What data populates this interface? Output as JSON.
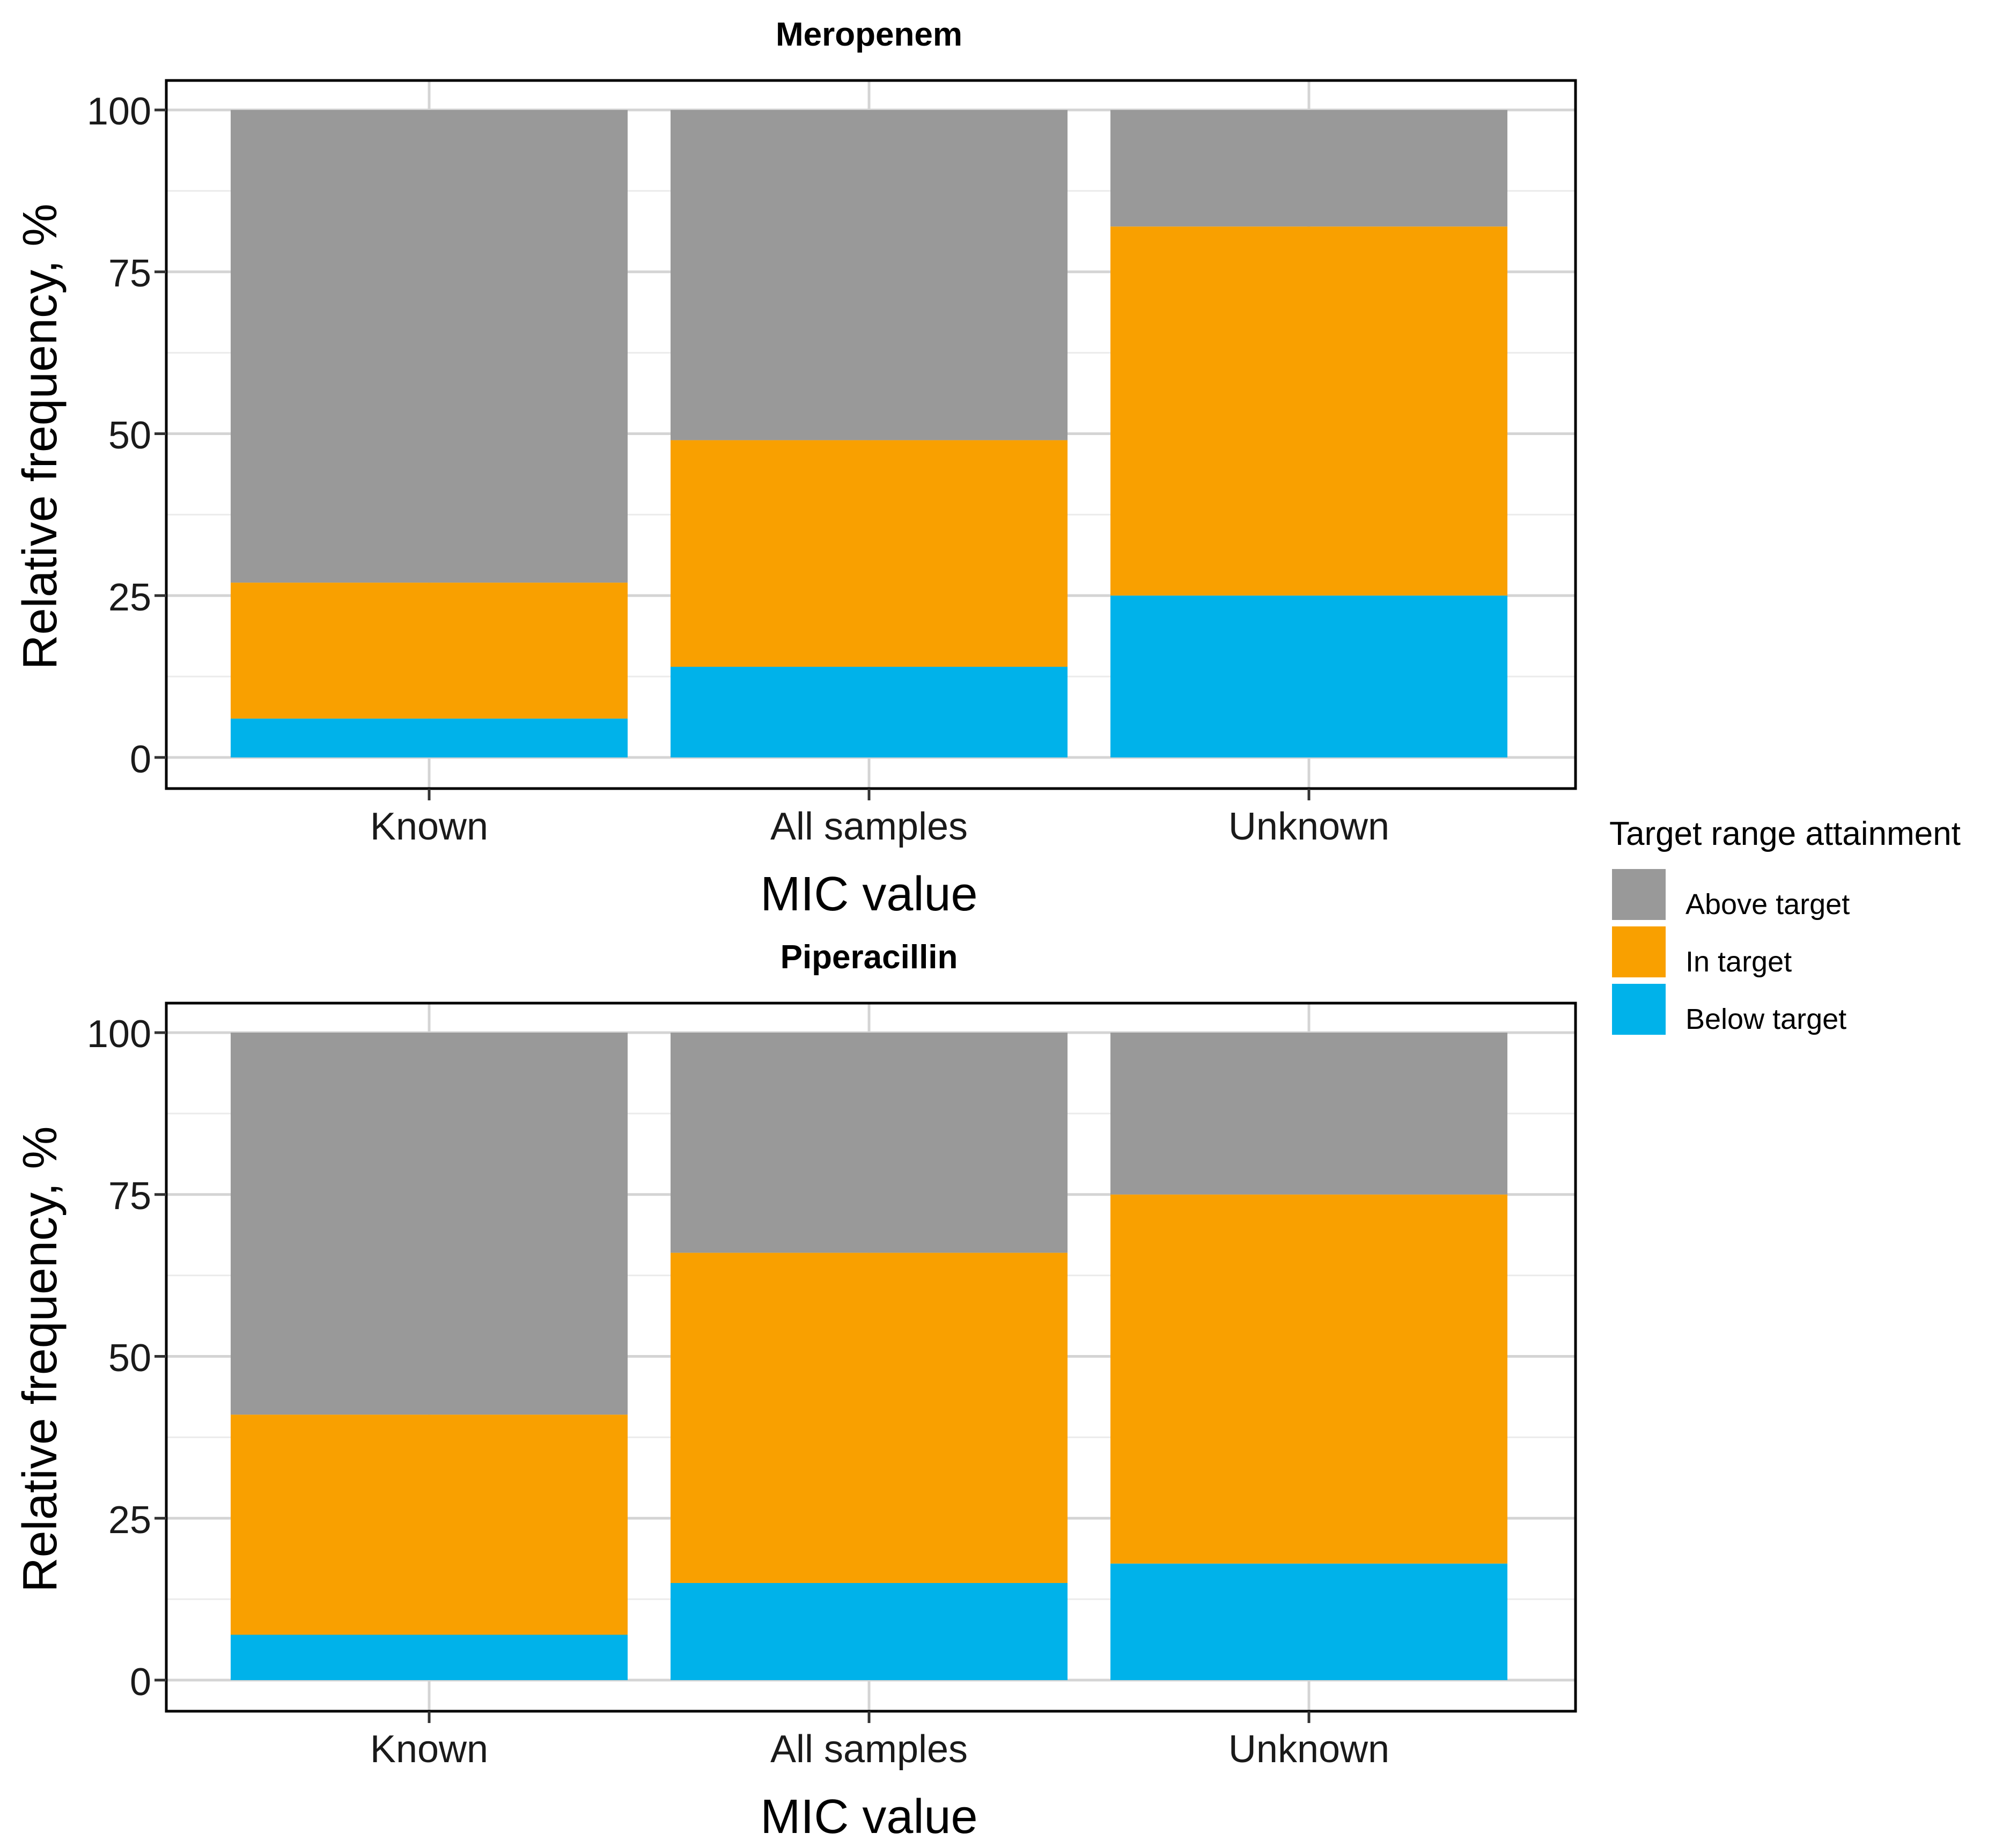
{
  "chart_data": [
    {
      "type": "bar",
      "stacked": true,
      "title": "Meropenem",
      "xlabel": "MIC value",
      "ylabel": "Relative frequency, %",
      "ylim": [
        0,
        100
      ],
      "yticks": [
        "0",
        "25",
        "50",
        "75",
        "100"
      ],
      "categories": [
        "Known",
        "All samples",
        "Unknown"
      ],
      "series": [
        {
          "name": "Below target",
          "values": [
            6,
            14,
            25
          ]
        },
        {
          "name": "In target",
          "values": [
            21,
            35,
            57
          ]
        },
        {
          "name": "Above target",
          "values": [
            73,
            51,
            18
          ]
        }
      ]
    },
    {
      "type": "bar",
      "stacked": true,
      "title": "Piperacillin",
      "xlabel": "MIC value",
      "ylabel": "Relative frequency, %",
      "ylim": [
        0,
        100
      ],
      "yticks": [
        "0",
        "25",
        "50",
        "75",
        "100"
      ],
      "categories": [
        "Known",
        "All samples",
        "Unknown"
      ],
      "series": [
        {
          "name": "Below target",
          "values": [
            7,
            15,
            18
          ]
        },
        {
          "name": "In target",
          "values": [
            34,
            51,
            57
          ]
        },
        {
          "name": "Above target",
          "values": [
            59,
            34,
            25
          ]
        }
      ]
    }
  ],
  "legend": {
    "title": "Target range attainment",
    "placement": "right",
    "items": [
      {
        "label": "Above target",
        "color": "#999999"
      },
      {
        "label": "In target",
        "color": "#F9A000"
      },
      {
        "label": "Below target",
        "color": "#00B2EA"
      }
    ]
  },
  "colors": {
    "Below target": "#00B2EA",
    "In target": "#F9A000",
    "Above target": "#999999"
  }
}
